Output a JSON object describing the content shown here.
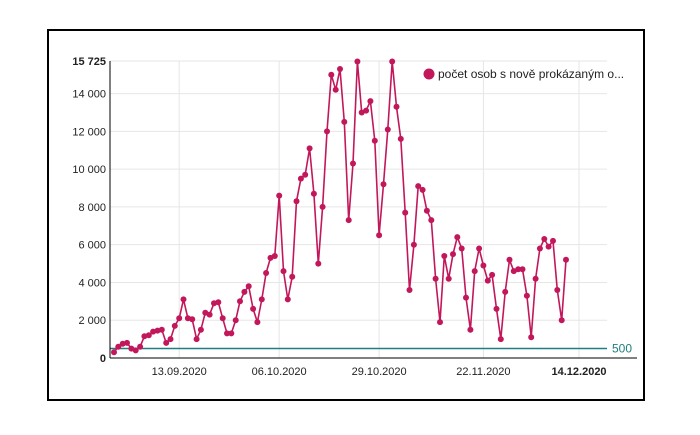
{
  "chart_data": {
    "type": "line",
    "title": "",
    "xlabel": "",
    "ylabel": "",
    "ylim": [
      0,
      15725
    ],
    "y_ticks": [
      0,
      2000,
      4000,
      6000,
      8000,
      10000,
      12000,
      14000,
      15725
    ],
    "y_tick_labels": [
      "0",
      "2 000",
      "4 000",
      "6 000",
      "8 000",
      "10 000",
      "12 000",
      "14 000",
      "15 725"
    ],
    "x_ticks": [
      {
        "label": "13.09.2020",
        "index": 15,
        "bold": false
      },
      {
        "label": "06.10.2020",
        "index": 38,
        "bold": false
      },
      {
        "label": "29.10.2020",
        "index": 61,
        "bold": false
      },
      {
        "label": "22.11.2020",
        "index": 85,
        "bold": false
      },
      {
        "label": "14.12.2020",
        "index": 107,
        "bold": true
      }
    ],
    "grid": true,
    "legend_position": "top-right",
    "reference_line": {
      "value": 500,
      "label": "500",
      "color": "#1f7f7f"
    },
    "series": [
      {
        "name": "počet osob s nově prokázaným o...",
        "color": "#c2185b",
        "values": [
          300,
          600,
          750,
          800,
          500,
          400,
          600,
          1150,
          1200,
          1400,
          1450,
          1500,
          800,
          1000,
          1700,
          2100,
          3100,
          2100,
          2050,
          1000,
          1500,
          2400,
          2300,
          2900,
          2950,
          2100,
          1300,
          1300,
          2000,
          3000,
          3500,
          3800,
          2600,
          1900,
          3100,
          4500,
          5300,
          5400,
          8600,
          4600,
          3100,
          4300,
          8300,
          9500,
          9700,
          11100,
          8700,
          5000,
          8000,
          12000,
          15000,
          14200,
          15300,
          12500,
          7300,
          10300,
          15700,
          13000,
          13100,
          13600,
          11500,
          6500,
          9200,
          12100,
          15700,
          13300,
          11600,
          7700,
          3600,
          6000,
          9100,
          8900,
          7800,
          7300,
          4200,
          1900,
          5400,
          4200,
          5500,
          6400,
          5800,
          3200,
          1500,
          4600,
          5800,
          4900,
          4100,
          4400,
          2600,
          1000,
          3500,
          5200,
          4600,
          4700,
          4700,
          3300,
          1100,
          4200,
          5800,
          6300,
          5900,
          6200,
          3600,
          2000,
          5200
        ]
      }
    ]
  }
}
